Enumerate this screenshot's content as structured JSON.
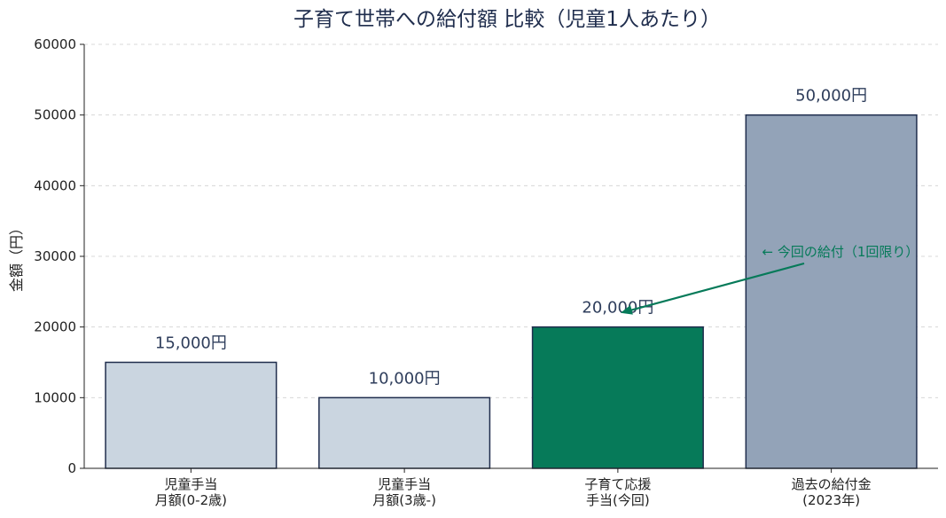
{
  "chart_data": {
    "type": "bar",
    "title": "子育て世帯への給付額 比較（児童1人あたり）",
    "ylabel": "金額（円）",
    "xlabel": "",
    "ylim": [
      0,
      60000
    ],
    "yticks": [
      0,
      10000,
      20000,
      30000,
      40000,
      50000,
      60000
    ],
    "ytick_labels": [
      "0",
      "10000",
      "20000",
      "30000",
      "40000",
      "50000",
      "60000"
    ],
    "grid": "horizontal dashed",
    "categories": [
      [
        "児童手当",
        "月額(0-2歳)"
      ],
      [
        "児童手当",
        "月額(3歳-)"
      ],
      [
        "子育て応援",
        "手当(今回)"
      ],
      [
        "過去の給付金",
        "(2023年)"
      ]
    ],
    "values": [
      15000,
      10000,
      20000,
      50000
    ],
    "value_labels": [
      "15,000円",
      "10,000円",
      "20,000円",
      "50,000円"
    ],
    "bar_colors": [
      "#cad5e0",
      "#cad5e0",
      "#067a59",
      "#93a3b8"
    ],
    "bar_edge_color": "#1f2d4d",
    "annotation": {
      "text": "← 今回の給付（1回限り）",
      "color": "#067a59",
      "points_to_category": 2,
      "points_to_value": 22000,
      "text_value": 30000
    }
  }
}
